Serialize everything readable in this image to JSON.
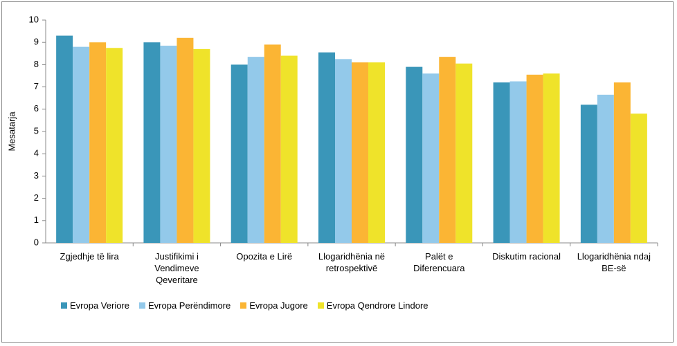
{
  "chart_data": {
    "type": "bar",
    "y_label": "Mesatarja",
    "categories": [
      "Zgjedhje të lira",
      "Justifikimi i Vendimeve Qeveritare",
      "Opozita e Lirë",
      "Llogaridhënia në retrospektivë",
      "Palët e Diferencuara",
      "Diskutim racional",
      "Llogaridhënia ndaj BE-së"
    ],
    "series": [
      {
        "name": "Evropa Veriore",
        "color": "#3a96b9",
        "values": [
          9.3,
          9.0,
          8.0,
          8.55,
          7.9,
          7.2,
          6.2
        ]
      },
      {
        "name": "Evropa Perëndimore",
        "color": "#93c9ea",
        "values": [
          8.8,
          8.85,
          8.35,
          8.25,
          7.6,
          7.25,
          6.65
        ]
      },
      {
        "name": "Evropa Jugore",
        "color": "#fbb534",
        "values": [
          9.0,
          9.2,
          8.9,
          8.1,
          8.35,
          7.55,
          7.2
        ]
      },
      {
        "name": "Evropa Qendrore Lindore",
        "color": "#efe32a",
        "values": [
          8.75,
          8.7,
          8.4,
          8.1,
          8.05,
          7.6,
          5.8
        ]
      }
    ],
    "ylim": [
      0,
      10
    ],
    "yticks": [
      0,
      1,
      2,
      3,
      4,
      5,
      6,
      7,
      8,
      9,
      10
    ],
    "grid": false,
    "legend": "bottom"
  }
}
